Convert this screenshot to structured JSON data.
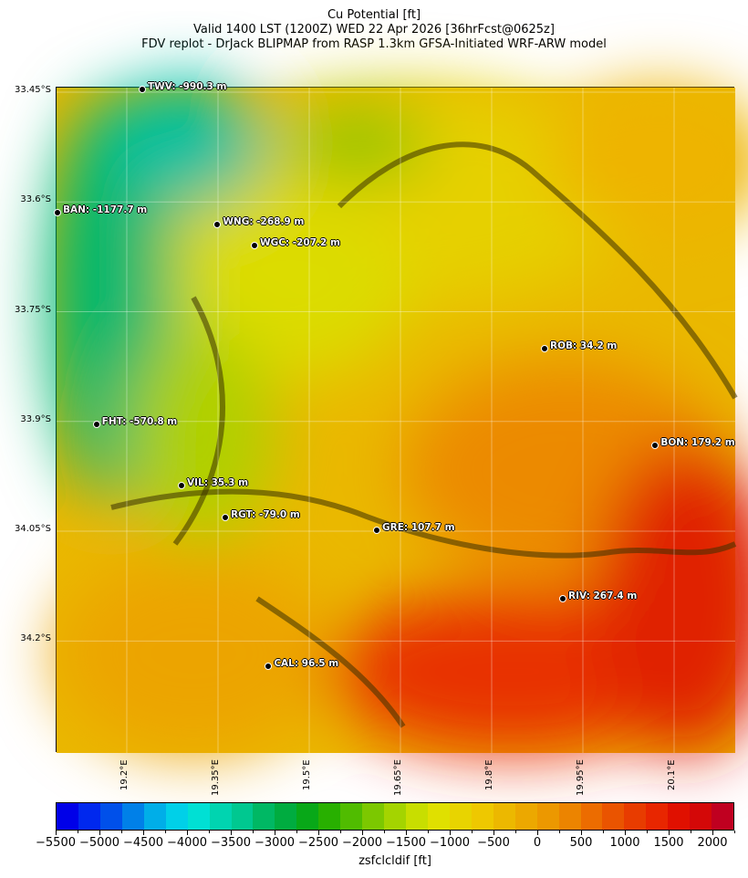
{
  "title": {
    "line1": "Cu Potential [ft]",
    "line2": "Valid 1400 LST (1200Z) WED 22 Apr 2026 [36hrFcst@0625z]",
    "line3": "FDV replot - DrJack BLIPMAP from RASP 1.3km GFSA-Initiated WRF-ARW model"
  },
  "map": {
    "lon_range": [
      19.0845,
      20.2005
    ],
    "lat_range": [
      33.4438,
      34.353
    ],
    "lat_ticks": [
      "33.45°S",
      "33.6°S",
      "33.75°S",
      "33.9°S",
      "34.05°S",
      "34.2°S"
    ],
    "lat_tick_values": [
      33.45,
      33.6,
      33.75,
      33.9,
      34.05,
      34.2
    ],
    "lon_ticks": [
      "19.2°E",
      "19.35°E",
      "19.5°E",
      "19.65°E",
      "19.8°E",
      "19.95°E",
      "20.1°E"
    ],
    "lon_tick_values": [
      19.2,
      19.35,
      19.5,
      19.65,
      19.8,
      19.95,
      20.1
    ],
    "grid": true,
    "stations": [
      {
        "label": "TWV: -990.3 m",
        "lon": 19.2255,
        "lat": 33.446
      },
      {
        "label": "BAN: -1177.7 m",
        "lon": 19.086,
        "lat": 33.615
      },
      {
        "label": "WNG: -268.9 m",
        "lon": 19.349,
        "lat": 33.631
      },
      {
        "label": "WGC: -207.2 m",
        "lon": 19.41,
        "lat": 33.659
      },
      {
        "label": "ROB: 34.2 m",
        "lon": 19.887,
        "lat": 33.8
      },
      {
        "label": "FHT: -570.8 m",
        "lon": 19.15,
        "lat": 33.904
      },
      {
        "label": "BON: 179.2 m",
        "lon": 20.069,
        "lat": 33.933
      },
      {
        "label": "VIL: 35.3 m",
        "lon": 19.29,
        "lat": 33.987
      },
      {
        "label": "RGT: -79.0 m",
        "lon": 19.362,
        "lat": 34.031
      },
      {
        "label": "GRE: 107.7 m",
        "lon": 19.611,
        "lat": 34.049
      },
      {
        "label": "RIV: 267.4 m",
        "lon": 19.917,
        "lat": 34.142
      },
      {
        "label": "CAL: 96.5 m",
        "lon": 19.433,
        "lat": 34.234
      }
    ]
  },
  "colorbar": {
    "label": "zsfclcldif [ft]",
    "min": -5500,
    "max": 2250,
    "step": 250,
    "tick_labels": [
      "−5500",
      "−5000",
      "−4500",
      "−4000",
      "−3500",
      "−3000",
      "−2500",
      "−2000",
      "−1500",
      "−1000",
      "−500",
      "0",
      "500",
      "1000",
      "1500",
      "2000"
    ],
    "tick_values": [
      -5500,
      -5000,
      -4500,
      -4000,
      -3500,
      -3000,
      -2500,
      -2000,
      -1500,
      -1000,
      -500,
      0,
      500,
      1000,
      1500,
      2000
    ],
    "colors": [
      "#0000e8",
      "#0028ee",
      "#0050ea",
      "#0080e8",
      "#00aee8",
      "#00d0e8",
      "#00e0d4",
      "#00d4b0",
      "#00c890",
      "#00b864",
      "#00ac40",
      "#08a818",
      "#28b000",
      "#50bc00",
      "#7cc800",
      "#a4d400",
      "#c8de00",
      "#e0e000",
      "#e8d400",
      "#eec800",
      "#ecb800",
      "#eca800",
      "#ec9800",
      "#ec8400",
      "#ec6c00",
      "#ea5400",
      "#e83c00",
      "#e82600",
      "#e01000",
      "#d40808",
      "#c00020"
    ]
  }
}
